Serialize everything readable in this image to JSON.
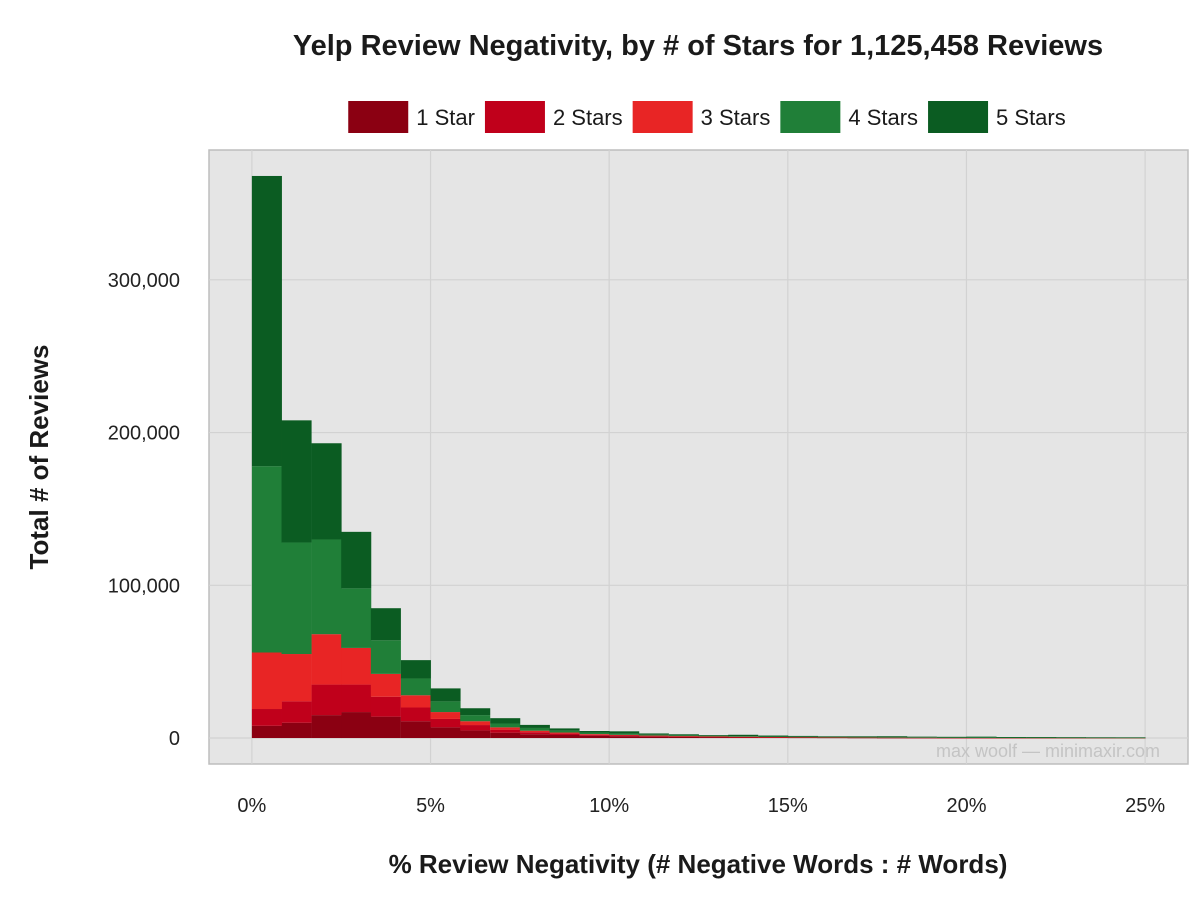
{
  "chart_data": {
    "type": "bar",
    "stacked": true,
    "title": "Yelp Review Negativity, by # of Stars for 1,125,458 Reviews",
    "xlabel": "% Review Negativity (# Negative Words : # Words)",
    "ylabel": "Total # of Reviews",
    "bin_width_pct": 0.83,
    "xlim": [
      -1.2,
      26.2
    ],
    "ylim": [
      -17000,
      385000
    ],
    "x_ticks": [
      0,
      5,
      10,
      15,
      20,
      25
    ],
    "x_tick_labels": [
      "0%",
      "5%",
      "10%",
      "15%",
      "20%",
      "25%"
    ],
    "y_ticks": [
      0,
      100000,
      200000,
      300000
    ],
    "y_tick_labels": [
      "0",
      "100,000",
      "200,000",
      "300,000"
    ],
    "grid": true,
    "legend_position": "top",
    "bin_starts_pct": [
      0,
      0.83,
      1.67,
      2.5,
      3.33,
      4.17,
      5,
      5.83,
      6.67,
      7.5,
      8.33,
      9.17,
      10,
      10.83,
      11.67,
      12.5,
      13.33,
      14.17,
      15,
      15.83,
      16.67,
      17.5,
      18.33,
      19.17,
      20,
      20.83,
      21.67,
      22.5,
      23.33,
      24.17
    ],
    "series": [
      {
        "name": "1 Star",
        "color": "#8b0012",
        "values": [
          8000,
          10000,
          15000,
          17000,
          14000,
          11000,
          7000,
          5000,
          3500,
          2500,
          2000,
          1500,
          1200,
          900,
          700,
          600,
          500,
          400,
          350,
          300,
          250,
          200,
          180,
          160,
          150,
          130,
          120,
          110,
          100,
          90
        ]
      },
      {
        "name": "2 Stars",
        "color": "#c0001b",
        "values": [
          11000,
          14000,
          20000,
          18000,
          13000,
          9000,
          5500,
          3500,
          2000,
          1300,
          900,
          600,
          500,
          400,
          300,
          250,
          200,
          180,
          150,
          130,
          110,
          100,
          90,
          80,
          70,
          60,
          55,
          50,
          45,
          40
        ]
      },
      {
        "name": "3 Stars",
        "color": "#e82525",
        "values": [
          37000,
          31000,
          33000,
          24000,
          15000,
          8000,
          4500,
          2500,
          1500,
          1000,
          700,
          500,
          400,
          300,
          250,
          200,
          180,
          150,
          130,
          110,
          100,
          90,
          80,
          70,
          60,
          55,
          50,
          45,
          40,
          35
        ]
      },
      {
        "name": "4 Stars",
        "color": "#207f38",
        "values": [
          122000,
          73000,
          62000,
          39000,
          22000,
          11000,
          7000,
          4000,
          2500,
          1800,
          1200,
          1000,
          800,
          600,
          500,
          400,
          350,
          300,
          250,
          220,
          200,
          180,
          160,
          140,
          130,
          120,
          110,
          100,
          90,
          80
        ]
      },
      {
        "name": "5 Stars",
        "color": "#0b5c22",
        "values": [
          190000,
          80000,
          63000,
          37000,
          21000,
          12000,
          8500,
          4500,
          3500,
          2000,
          1500,
          1000,
          1500,
          800,
          700,
          500,
          900,
          600,
          500,
          400,
          450,
          600,
          400,
          350,
          500,
          300,
          300,
          250,
          200,
          200
        ]
      }
    ]
  },
  "watermark": "max woolf — minimaxir.com"
}
